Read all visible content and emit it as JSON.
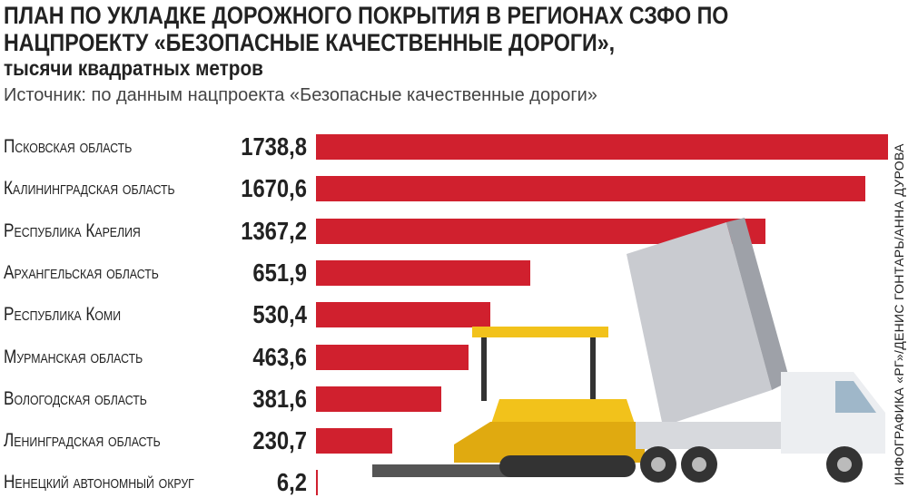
{
  "chart_data": {
    "type": "bar",
    "orientation": "horizontal",
    "title": "План по укладке дорожного покрытия в регионах СЗФО по нацпроекту «Безопасные качественные дороги»,",
    "subtitle": "тысячи квадратных метров",
    "source": "Источник: по данным нацпроекта «Безопасные качественные дороги»",
    "credit": "ИНФОГРАФИКА «РГ»/ДЕНИС ГОНТАРЬ/АННА ДУРОВА",
    "categories": [
      "Псковская область",
      "Калининградская область",
      "Республика Карелия",
      "Архангельская область",
      "Республика Коми",
      "Мурманская область",
      "Вологодская область",
      "Ленинградская область",
      "Ненецкий автономный округ"
    ],
    "values": [
      1738.8,
      1670.6,
      1367.2,
      651.9,
      530.4,
      463.6,
      381.6,
      230.7,
      6.2
    ],
    "value_labels": [
      "1738,8",
      "1670,6",
      "1367,2",
      "651,9",
      "530,4",
      "463,6",
      "381,6",
      "230,7",
      "6,2"
    ],
    "color": "#d0202e"
  }
}
